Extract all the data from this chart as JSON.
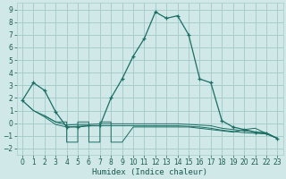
{
  "title": "",
  "xlabel": "Humidex (Indice chaleur)",
  "ylabel": "",
  "bg_color": "#d0e8e8",
  "grid_color": "#a8cccc",
  "line_color": "#1a6e64",
  "marker_color": "#1a6e64",
  "xlim": [
    -0.5,
    23.5
  ],
  "ylim": [
    -2.5,
    9.5
  ],
  "xticks": [
    0,
    1,
    2,
    3,
    4,
    5,
    6,
    7,
    8,
    9,
    10,
    11,
    12,
    13,
    14,
    15,
    16,
    17,
    18,
    19,
    20,
    21,
    22,
    23
  ],
  "yticks": [
    -2,
    -1,
    0,
    1,
    2,
    3,
    4,
    5,
    6,
    7,
    8,
    9
  ],
  "series_main": {
    "x": [
      0,
      1,
      2,
      3,
      4,
      5,
      6,
      7,
      8,
      9,
      10,
      11,
      12,
      13,
      14,
      15,
      16,
      17,
      18,
      19,
      20,
      21,
      22,
      23
    ],
    "y": [
      1.8,
      3.2,
      2.6,
      0.9,
      -0.3,
      -0.3,
      -0.2,
      -0.2,
      2.0,
      3.5,
      5.3,
      6.7,
      8.8,
      8.3,
      8.5,
      7.0,
      3.5,
      3.2,
      0.2,
      -0.3,
      -0.5,
      -0.7,
      -0.8,
      -1.2
    ]
  },
  "series_flat1": {
    "x": [
      0,
      1,
      2,
      3,
      4,
      5,
      6,
      7,
      8,
      9,
      10,
      11,
      12,
      13,
      14,
      15,
      16,
      17,
      18,
      19,
      20,
      21,
      22,
      23
    ],
    "y": [
      1.8,
      1.0,
      0.6,
      0.1,
      -0.15,
      -0.1,
      -0.1,
      -0.05,
      -0.05,
      -0.05,
      -0.05,
      -0.05,
      -0.05,
      -0.05,
      -0.05,
      -0.1,
      -0.15,
      -0.2,
      -0.4,
      -0.5,
      -0.6,
      -0.7,
      -0.75,
      -1.2
    ]
  },
  "series_flat2": {
    "x": [
      0,
      1,
      2,
      3,
      4,
      5,
      6,
      7,
      8,
      9,
      10,
      11,
      12,
      13,
      14,
      15,
      16,
      17,
      18,
      19,
      20,
      21,
      22,
      23
    ],
    "y": [
      1.8,
      1.0,
      0.5,
      -0.1,
      -0.3,
      -0.25,
      -0.2,
      -0.2,
      -0.2,
      -0.2,
      -0.2,
      -0.2,
      -0.2,
      -0.2,
      -0.2,
      -0.25,
      -0.3,
      -0.4,
      -0.55,
      -0.65,
      -0.75,
      -0.8,
      -0.85,
      -1.2
    ]
  },
  "series_zigzag": {
    "x": [
      2,
      3,
      4,
      4,
      5,
      5,
      6,
      6,
      7,
      7,
      8,
      8,
      9,
      10,
      11,
      12,
      13,
      14,
      15,
      16,
      17,
      18,
      19,
      20,
      21,
      22,
      23
    ],
    "y": [
      0.6,
      0.1,
      0.1,
      -1.5,
      -1.5,
      0.1,
      0.1,
      -1.5,
      -1.5,
      0.1,
      0.1,
      -1.5,
      -1.5,
      -0.3,
      -0.3,
      -0.3,
      -0.3,
      -0.3,
      -0.3,
      -0.4,
      -0.5,
      -0.6,
      -0.7,
      -0.5,
      -0.4,
      -0.8,
      -1.2
    ]
  },
  "markers_main": {
    "x": [
      0,
      1,
      2,
      3,
      9,
      10,
      11,
      12,
      13,
      14,
      15,
      16,
      17,
      18,
      19,
      20,
      21,
      22,
      23
    ],
    "y": [
      1.8,
      3.2,
      2.6,
      0.9,
      3.5,
      5.3,
      6.7,
      8.8,
      8.3,
      8.5,
      7.0,
      3.5,
      3.2,
      0.2,
      -0.3,
      -0.5,
      -0.7,
      -0.8,
      -1.2
    ]
  },
  "markers_small": {
    "x": [
      4,
      5,
      6,
      7,
      8,
      20,
      21,
      22
    ],
    "y": [
      -0.15,
      -0.1,
      -0.1,
      -0.05,
      -0.05,
      -0.5,
      -0.4,
      -0.8
    ]
  }
}
